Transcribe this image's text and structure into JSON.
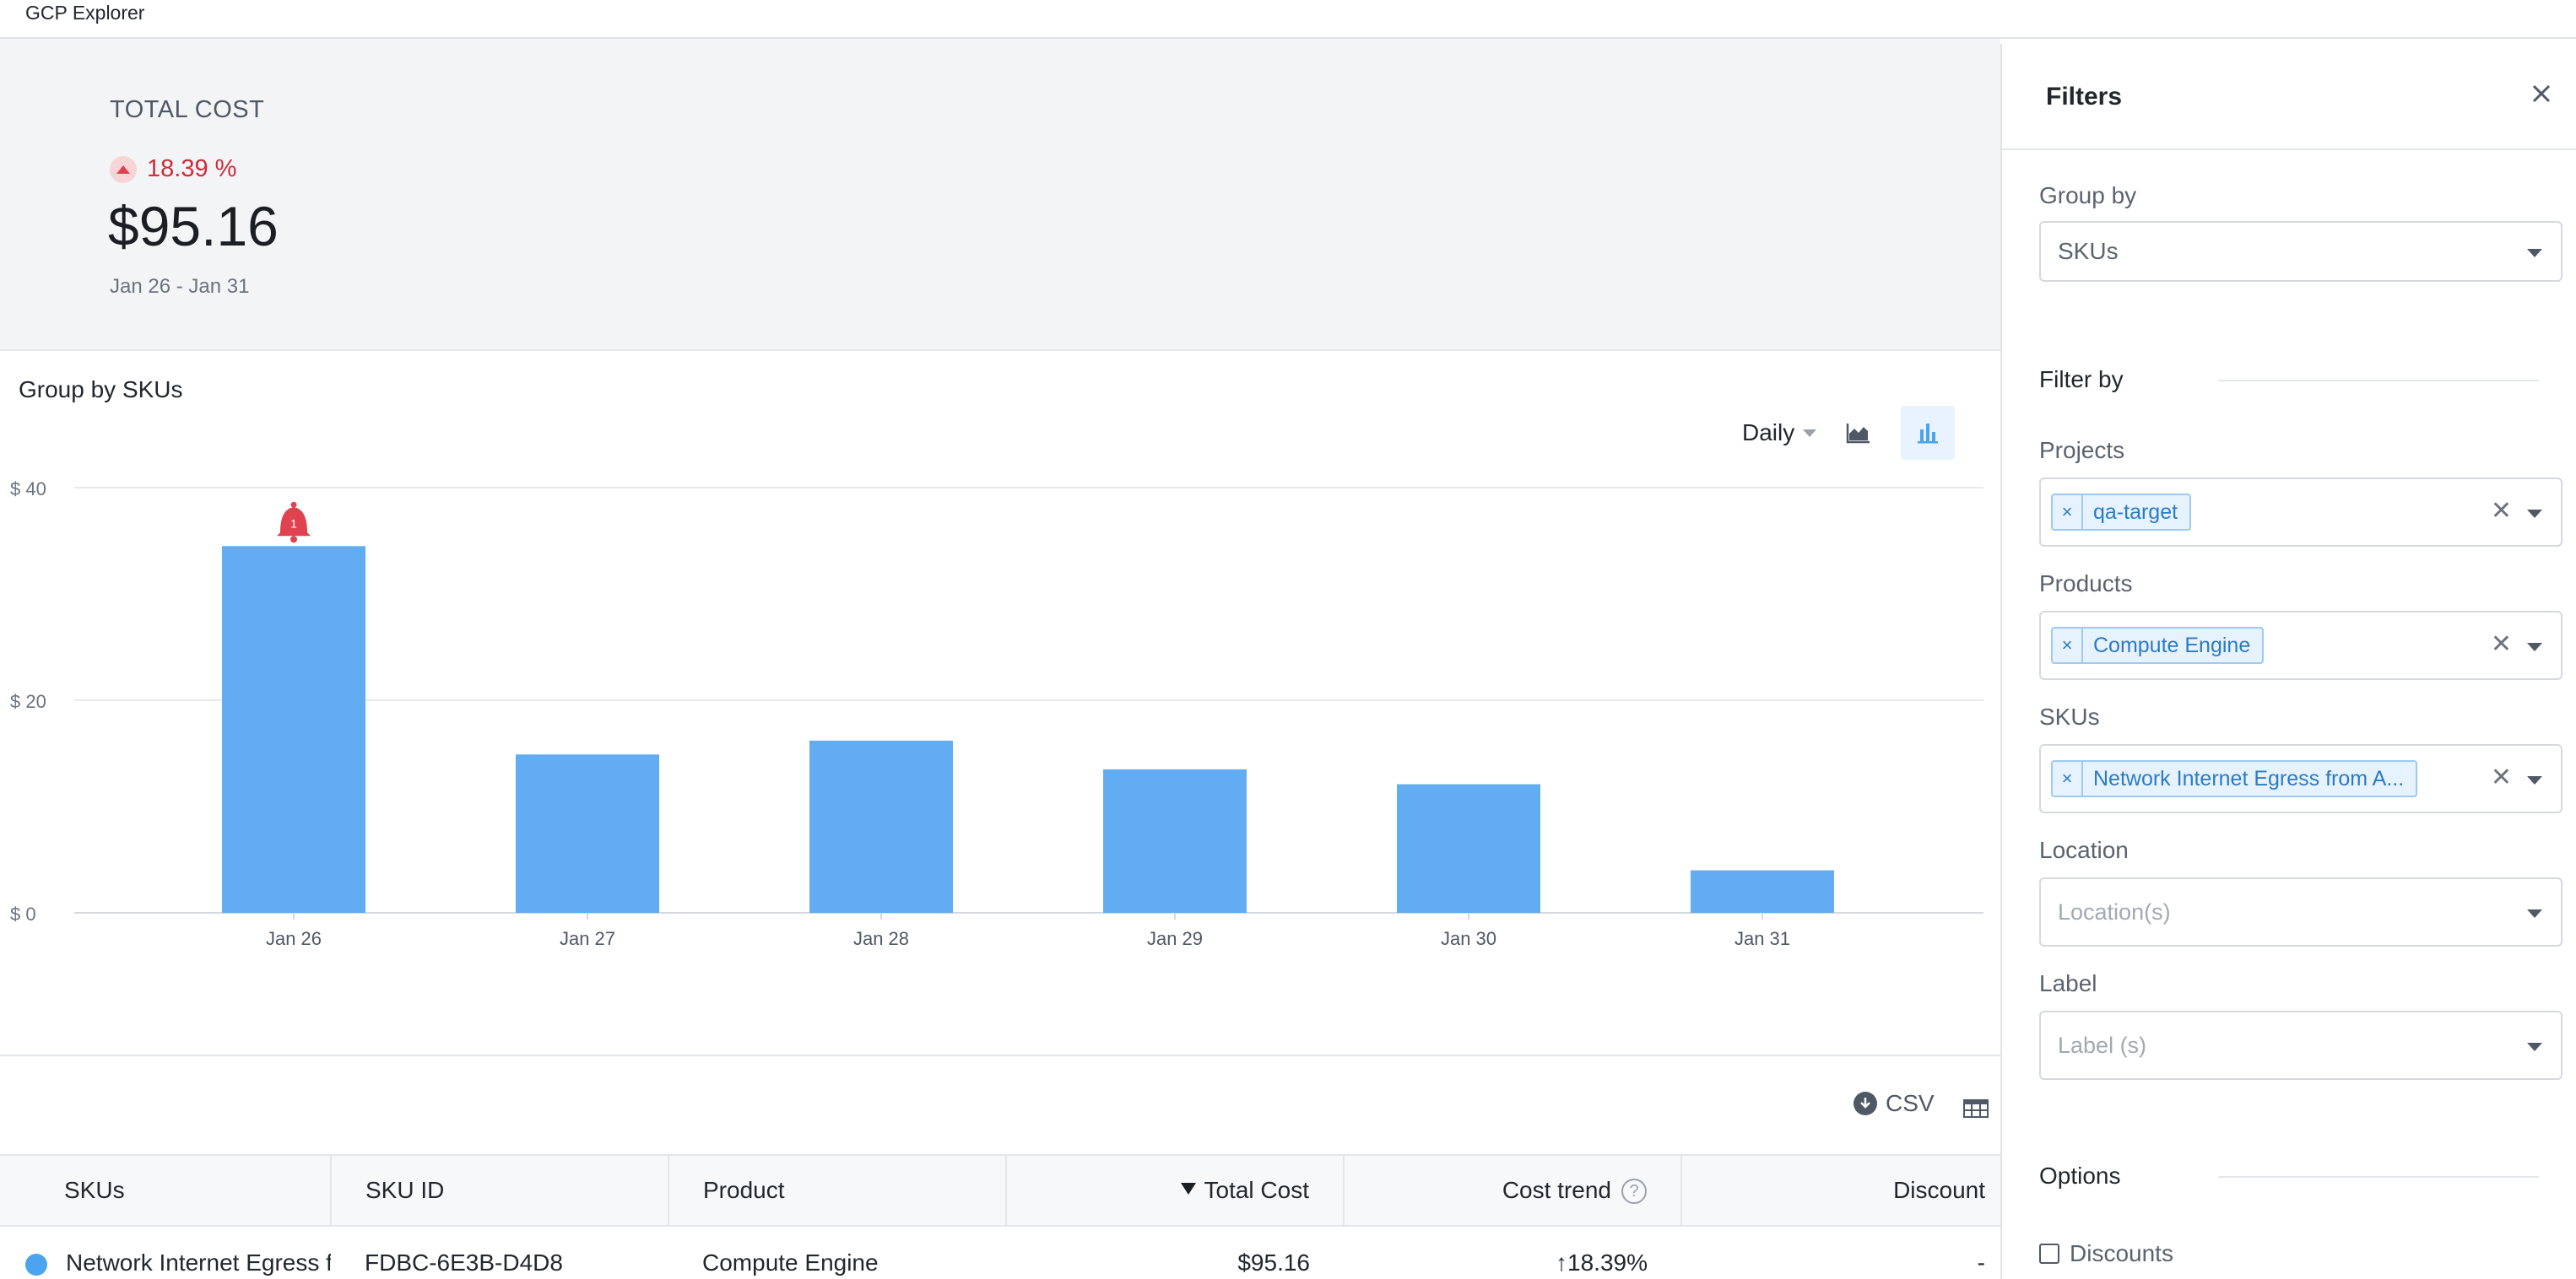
{
  "app": {
    "title": "GCP Explorer"
  },
  "summary": {
    "label": "TOTAL COST",
    "trend_pct": "18.39 %",
    "amount": "$95.16",
    "date_range": "Jan 26 - Jan 31"
  },
  "chart_panel": {
    "title": "Group by SKUs",
    "granularity": "Daily",
    "view_icons": [
      "area-chart-icon",
      "bar-chart-icon"
    ],
    "active_view": "bar-chart-icon"
  },
  "chart_data": {
    "type": "bar",
    "categories": [
      "Jan 26",
      "Jan 27",
      "Jan 28",
      "Jan 29",
      "Jan 30",
      "Jan 31"
    ],
    "values": [
      34.5,
      14.9,
      16.2,
      13.5,
      12.1,
      4.0
    ],
    "y_ticks": [
      "$ 0",
      "$ 20",
      "$ 40"
    ],
    "ylim": [
      0,
      40
    ],
    "grid": true,
    "color": "#62adf1",
    "anomaly": {
      "category": "Jan 26",
      "count": "1",
      "color": "#e0424f"
    }
  },
  "table_toolbar": {
    "csv_label": "CSV"
  },
  "table": {
    "headers": {
      "skus": "SKUs",
      "sku_id": "SKU ID",
      "product": "Product",
      "total_cost": "Total Cost",
      "cost_trend": "Cost trend",
      "discount": "Discount"
    },
    "rows": [
      {
        "sku": "Network Internet Egress from Americas to Americas",
        "sku_id": "FDBC-6E3B-D4D8",
        "product": "Compute Engine",
        "total_cost": "$95.16",
        "cost_trend": "↑18.39%",
        "discount": "-"
      }
    ]
  },
  "filters": {
    "title": "Filters",
    "group_by_label": "Group by",
    "group_by_value": "SKUs",
    "filter_by_label": "Filter by",
    "projects_label": "Projects",
    "projects_chip": "qa-target",
    "products_label": "Products",
    "products_chip": "Compute Engine",
    "skus_label": "SKUs",
    "skus_chip": "Network Internet Egress from A...",
    "location_label": "Location",
    "location_placeholder": "Location(s)",
    "label_label": "Label",
    "label_placeholder": "Label (s)",
    "options_label": "Options",
    "discounts_label": "Discounts"
  },
  "colors": {
    "accent": "#4ba4ee",
    "bar": "#62adf1",
    "alert": "#e0424f",
    "trend_down": "#cf2b39"
  }
}
